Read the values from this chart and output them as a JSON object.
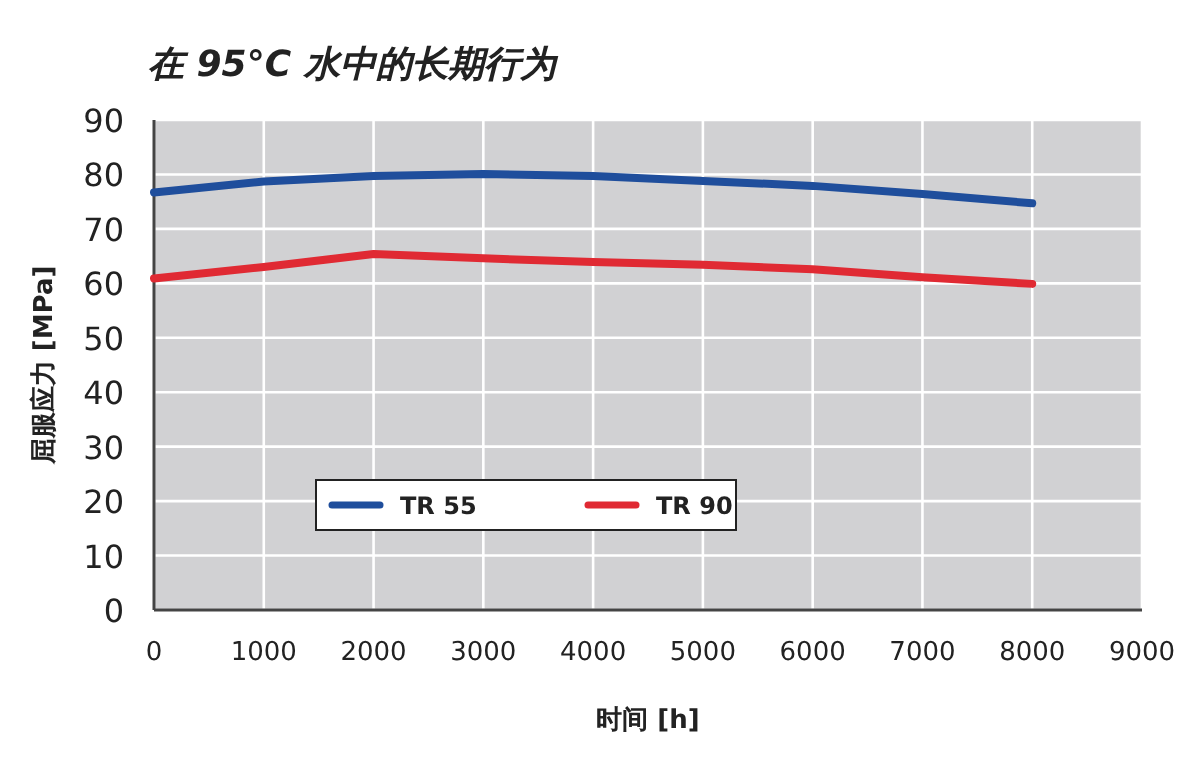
{
  "chart_data": {
    "type": "line",
    "title": "在 95°C 水中的长期行为",
    "xlabel": "时间 [h]",
    "ylabel": "屈服应力 [MPa]",
    "x": [
      0,
      1000,
      2000,
      3000,
      4000,
      5000,
      6000,
      7000,
      8000
    ],
    "series": [
      {
        "name": "TR 55",
        "color": "#1f4e9c",
        "values": [
          76.7,
          78.7,
          79.7,
          80.1,
          79.7,
          78.8,
          77.9,
          76.4,
          74.7
        ]
      },
      {
        "name": "TR 90",
        "color": "#e02a33",
        "values": [
          60.9,
          63.0,
          65.4,
          64.6,
          63.9,
          63.4,
          62.6,
          61.1,
          59.9
        ]
      }
    ],
    "xlim": [
      0,
      9000
    ],
    "ylim": [
      0,
      90
    ],
    "xticks": [
      0,
      1000,
      2000,
      3000,
      4000,
      5000,
      6000,
      7000,
      8000,
      9000
    ],
    "yticks": [
      0,
      10,
      20,
      30,
      40,
      50,
      60,
      70,
      80,
      90
    ],
    "grid": true,
    "legend": "bottom left"
  }
}
